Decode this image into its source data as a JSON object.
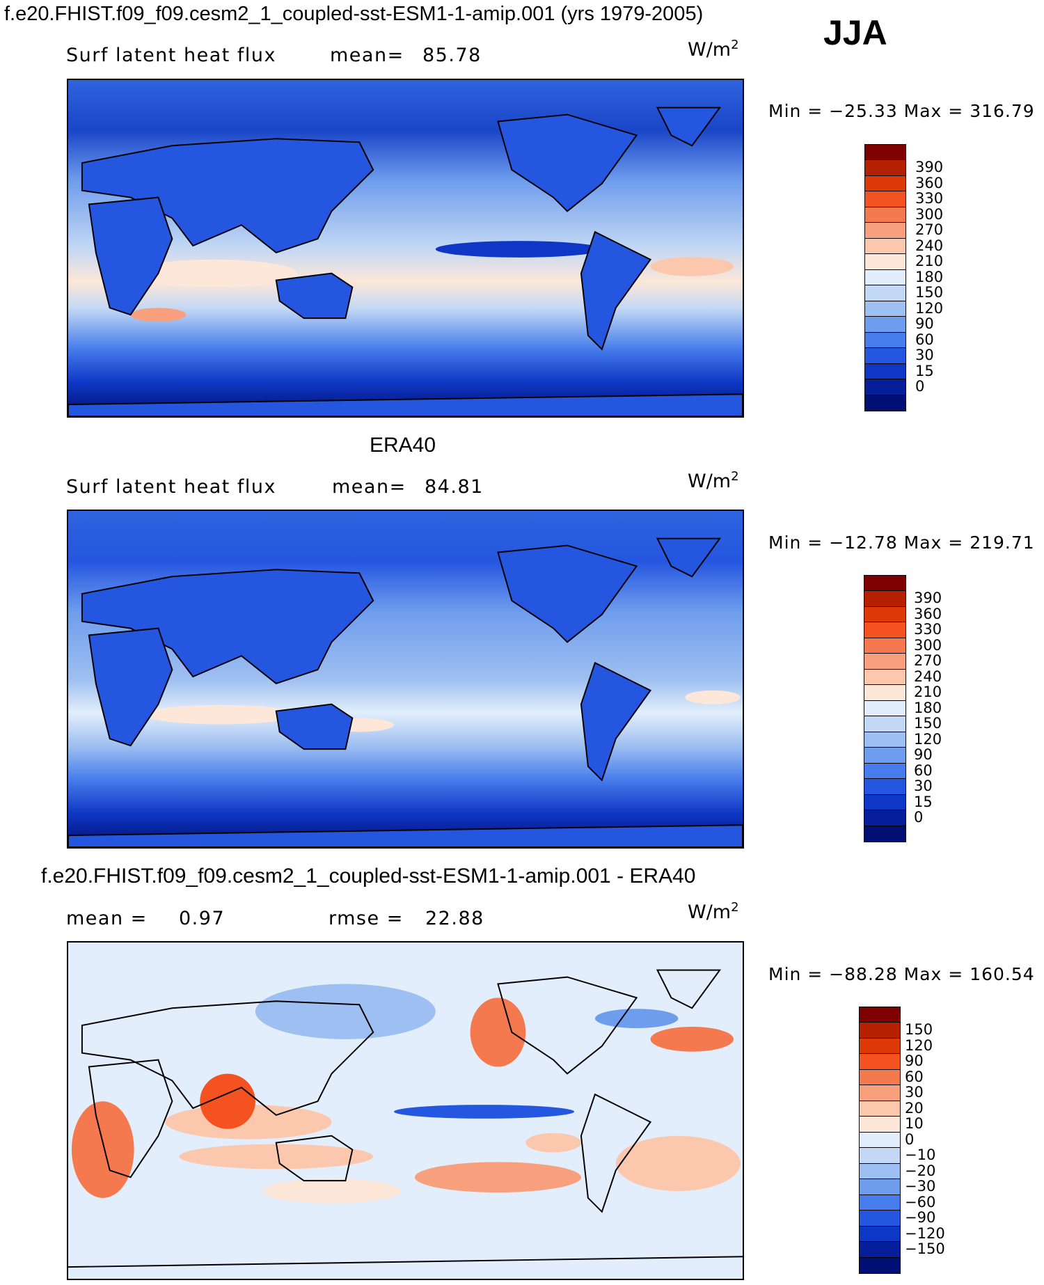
{
  "header": {
    "title": "f.e20.FHIST.f09_f09.cesm2_1_coupled-sst-ESM1-1-amip.001 (yrs 1979-2005)",
    "season": "JJA"
  },
  "panels": [
    {
      "panel_title": "",
      "left_label": "Surf latent heat flux",
      "stat_label": "mean=",
      "stat_value": "85.78",
      "stat2_label": "",
      "stat2_value": "",
      "units_base": "W/m",
      "units_exp": "2",
      "minmax": "Min = −25.33 Max = 316.79",
      "colorbar": {
        "colors": [
          "#7f0000",
          "#b42000",
          "#dd3a08",
          "#f45220",
          "#f5794f",
          "#f8a07e",
          "#fbc8ae",
          "#fde7d8",
          "#e2eefb",
          "#c3d8f5",
          "#9ebff1",
          "#6f9ded",
          "#467ceb",
          "#2556e0",
          "#0f37c5",
          "#061e99",
          "#000f73"
        ],
        "labels": [
          "390",
          "360",
          "330",
          "300",
          "270",
          "240",
          "210",
          "180",
          "150",
          "120",
          "90",
          "60",
          "30",
          "15",
          "0"
        ]
      }
    },
    {
      "panel_title": "ERA40",
      "left_label": "Surf latent heat flux",
      "stat_label": "mean=",
      "stat_value": "84.81",
      "stat2_label": "",
      "stat2_value": "",
      "units_base": "W/m",
      "units_exp": "2",
      "minmax": "Min = −12.78 Max = 219.71",
      "colorbar": {
        "colors": [
          "#7f0000",
          "#b42000",
          "#dd3a08",
          "#f45220",
          "#f5794f",
          "#f8a07e",
          "#fbc8ae",
          "#fde7d8",
          "#e2eefb",
          "#c3d8f5",
          "#9ebff1",
          "#6f9ded",
          "#467ceb",
          "#2556e0",
          "#0f37c5",
          "#061e99",
          "#000f73"
        ],
        "labels": [
          "390",
          "360",
          "330",
          "300",
          "270",
          "240",
          "210",
          "180",
          "150",
          "120",
          "90",
          "60",
          "30",
          "15",
          "0"
        ]
      }
    },
    {
      "panel_title": "f.e20.FHIST.f09_f09.cesm2_1_coupled-sst-ESM1-1-amip.001 - ERA40",
      "left_label": "mean =",
      "stat_label": "",
      "stat_value": "0.97",
      "stat2_label": "rmse =",
      "stat2_value": "22.88",
      "units_base": "W/m",
      "units_exp": "2",
      "minmax": "Min = −88.28 Max = 160.54",
      "colorbar": {
        "colors": [
          "#7f0000",
          "#b42000",
          "#dd3a08",
          "#f45220",
          "#f5794f",
          "#f8a07e",
          "#fbc8ae",
          "#fde7d8",
          "#e2eefb",
          "#c3d8f5",
          "#9ebff1",
          "#6f9ded",
          "#467ceb",
          "#2556e0",
          "#0f37c5",
          "#061e99",
          "#000f73"
        ],
        "labels": [
          "150",
          "120",
          "90",
          "60",
          "30",
          "20",
          "10",
          "0",
          "−10",
          "−20",
          "−30",
          "−60",
          "−90",
          "−120",
          "−150"
        ]
      }
    }
  ],
  "chart_data": [
    {
      "type": "heatmap",
      "title": "f.e20.FHIST.f09_f09.cesm2_1_coupled-sst-ESM1-1-amip.001 (yrs 1979-2005)",
      "variable": "Surf latent heat flux",
      "season": "JJA",
      "units": "W/m2",
      "mean": 85.78,
      "min": -25.33,
      "max": 316.79,
      "contour_levels": [
        0,
        15,
        30,
        60,
        90,
        120,
        150,
        180,
        210,
        240,
        270,
        300,
        330,
        360,
        390
      ]
    },
    {
      "type": "heatmap",
      "title": "ERA40",
      "variable": "Surf latent heat flux",
      "season": "JJA",
      "units": "W/m2",
      "mean": 84.81,
      "min": -12.78,
      "max": 219.71,
      "contour_levels": [
        0,
        15,
        30,
        60,
        90,
        120,
        150,
        180,
        210,
        240,
        270,
        300,
        330,
        360,
        390
      ]
    },
    {
      "type": "heatmap",
      "title": "f.e20.FHIST.f09_f09.cesm2_1_coupled-sst-ESM1-1-amip.001 - ERA40",
      "season": "JJA",
      "units": "W/m2",
      "mean": 0.97,
      "rmse": 22.88,
      "min": -88.28,
      "max": 160.54,
      "contour_levels": [
        -150,
        -120,
        -90,
        -60,
        -30,
        -20,
        -10,
        0,
        10,
        20,
        30,
        60,
        90,
        120,
        150
      ]
    }
  ]
}
